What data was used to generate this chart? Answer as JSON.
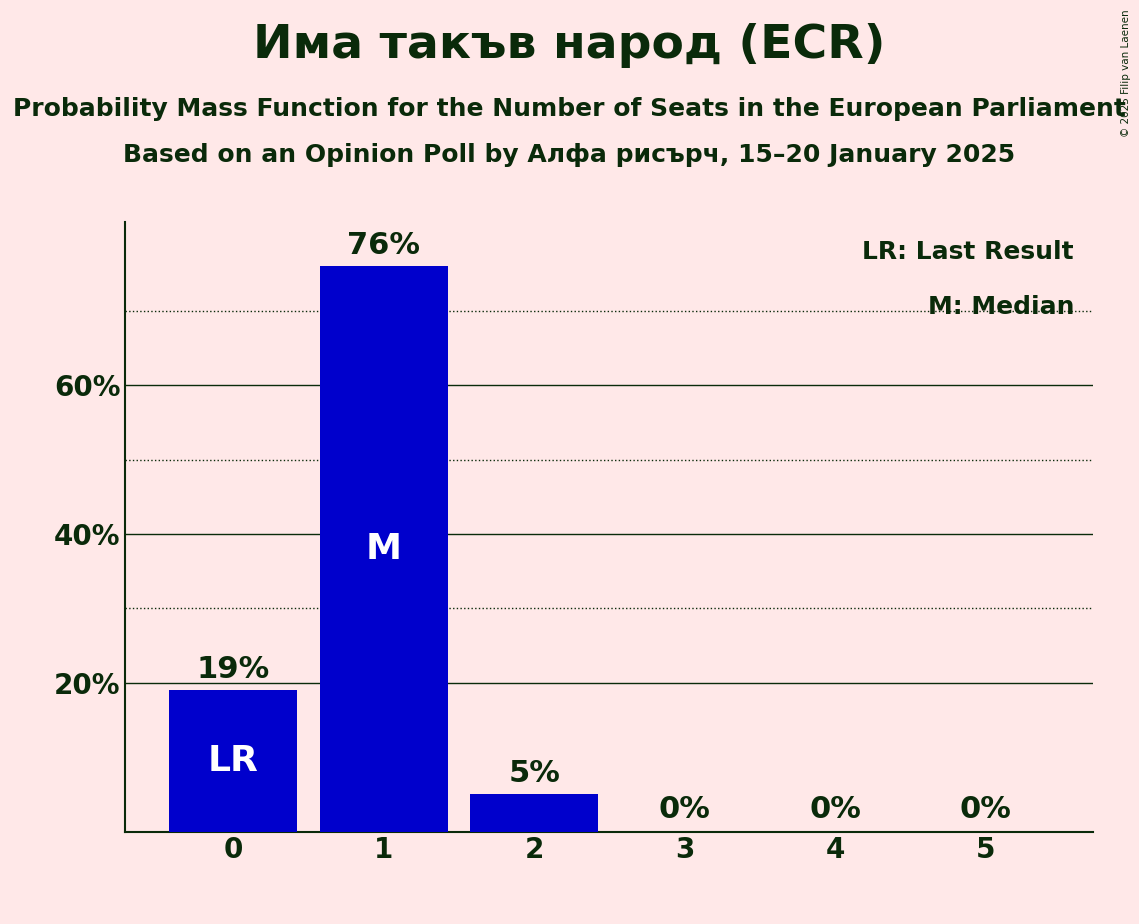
{
  "title": "Има такъв народ (ECR)",
  "subtitle1": "Probability Mass Function for the Number of Seats in the European Parliament",
  "subtitle2": "Based on an Opinion Poll by Алфа рисърч, 15–20 January 2025",
  "copyright": "© 2025 Filip van Laenen",
  "seats": [
    0,
    1,
    2,
    3,
    4,
    5
  ],
  "probabilities": [
    0.19,
    0.76,
    0.05,
    0.0,
    0.0,
    0.0
  ],
  "bar_color": "#0000CC",
  "bg_color": "#FFE8E8",
  "text_color": "#0A2A0A",
  "bar_labels": [
    "LR",
    "M",
    "",
    "",
    "",
    ""
  ],
  "pct_labels": [
    "19%",
    "76%",
    "5%",
    "0%",
    "0%",
    "0%"
  ],
  "legend_lr": "LR: Last Result",
  "legend_m": "M: Median",
  "ylim": [
    0,
    0.82
  ],
  "yticks": [
    0.0,
    0.2,
    0.4,
    0.6
  ],
  "ytick_labels": [
    "",
    "20%",
    "40%",
    "60%"
  ],
  "dotted_lines": [
    0.3,
    0.5,
    0.7
  ],
  "title_fontsize": 34,
  "subtitle_fontsize": 18,
  "label_fontsize": 26,
  "pct_fontsize": 22,
  "tick_fontsize": 20,
  "legend_fontsize": 18,
  "bar_label_color": "#FFFFFF"
}
